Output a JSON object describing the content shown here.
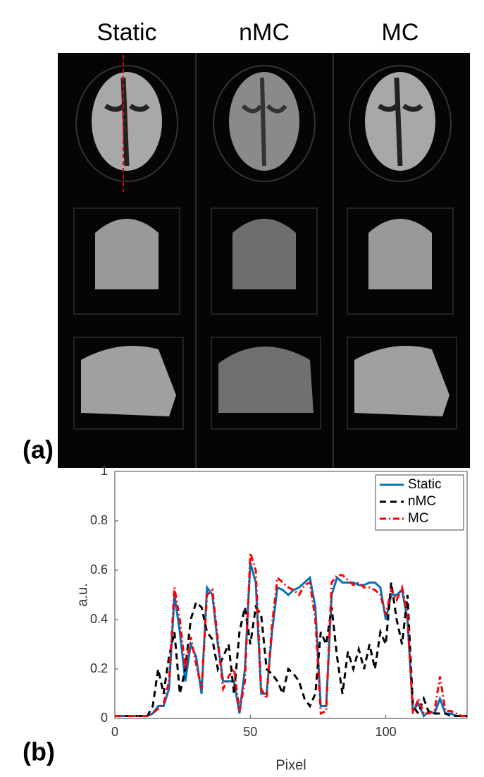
{
  "figure": {
    "columns": [
      "Static",
      "nMC",
      "MC"
    ],
    "panel_a": "(a)",
    "panel_b": "(b)"
  },
  "chart_data": {
    "type": "line",
    "xlabel": "Pixel",
    "ylabel": "a.u.",
    "xlim": [
      0,
      130
    ],
    "ylim": [
      0,
      1
    ],
    "xticks": [
      0,
      50,
      100
    ],
    "yticks": [
      0,
      0.2,
      0.4,
      0.6,
      0.8,
      1
    ],
    "legend": "upper right",
    "x": [
      0,
      2,
      4,
      6,
      8,
      10,
      12,
      14,
      16,
      18,
      20,
      22,
      24,
      26,
      28,
      30,
      32,
      34,
      36,
      38,
      40,
      42,
      44,
      46,
      48,
      50,
      52,
      54,
      56,
      58,
      60,
      62,
      64,
      66,
      68,
      70,
      72,
      74,
      76,
      78,
      80,
      82,
      84,
      86,
      88,
      90,
      92,
      94,
      96,
      98,
      100,
      102,
      104,
      106,
      108,
      110,
      112,
      114,
      116,
      118,
      120,
      122,
      124,
      126,
      128,
      130
    ],
    "series": [
      {
        "name": "Static",
        "color": "#0072bd",
        "linestyle": "solid",
        "values": [
          0.01,
          0.01,
          0.01,
          0.01,
          0.01,
          0.01,
          0.01,
          0.02,
          0.05,
          0.05,
          0.12,
          0.5,
          0.35,
          0.15,
          0.3,
          0.25,
          0.1,
          0.53,
          0.5,
          0.3,
          0.15,
          0.15,
          0.15,
          0.02,
          0.2,
          0.63,
          0.55,
          0.1,
          0.1,
          0.35,
          0.53,
          0.52,
          0.5,
          0.52,
          0.53,
          0.55,
          0.57,
          0.45,
          0.05,
          0.05,
          0.5,
          0.57,
          0.55,
          0.55,
          0.55,
          0.54,
          0.54,
          0.55,
          0.55,
          0.53,
          0.4,
          0.5,
          0.5,
          0.52,
          0.4,
          0.03,
          0.06,
          0.01,
          0.03,
          0.02,
          0.08,
          0.02,
          0.02,
          0.01,
          0.01,
          0.01
        ]
      },
      {
        "name": "nMC",
        "color": "#000000",
        "linestyle": "dashed",
        "values": [
          0.01,
          0.01,
          0.01,
          0.01,
          0.01,
          0.01,
          0.01,
          0.05,
          0.2,
          0.1,
          0.25,
          0.35,
          0.1,
          0.2,
          0.4,
          0.47,
          0.45,
          0.35,
          0.32,
          0.2,
          0.25,
          0.3,
          0.1,
          0.35,
          0.45,
          0.3,
          0.45,
          0.42,
          0.2,
          0.18,
          0.15,
          0.1,
          0.2,
          0.18,
          0.15,
          0.08,
          0.05,
          0.1,
          0.35,
          0.3,
          0.45,
          0.25,
          0.1,
          0.27,
          0.2,
          0.28,
          0.2,
          0.3,
          0.2,
          0.35,
          0.3,
          0.55,
          0.4,
          0.3,
          0.5,
          0.05,
          0.02,
          0.08,
          0.02,
          0.02,
          0.02,
          0.02,
          0.01,
          0.01,
          0.01,
          0.01
        ]
      },
      {
        "name": "MC",
        "color": "#ff0000",
        "linestyle": "dashdot",
        "values": [
          0.01,
          0.01,
          0.01,
          0.01,
          0.01,
          0.01,
          0.01,
          0.02,
          0.04,
          0.06,
          0.15,
          0.53,
          0.4,
          0.2,
          0.33,
          0.22,
          0.12,
          0.5,
          0.52,
          0.32,
          0.12,
          0.17,
          0.2,
          0.03,
          0.15,
          0.67,
          0.6,
          0.12,
          0.08,
          0.38,
          0.57,
          0.55,
          0.53,
          0.52,
          0.5,
          0.54,
          0.55,
          0.4,
          0.02,
          0.03,
          0.55,
          0.58,
          0.58,
          0.56,
          0.54,
          0.55,
          0.53,
          0.53,
          0.52,
          0.5,
          0.42,
          0.52,
          0.48,
          0.53,
          0.42,
          0.02,
          0.08,
          0.02,
          0.02,
          0.03,
          0.17,
          0.03,
          0.03,
          0.02,
          0.01,
          0.01
        ]
      }
    ]
  }
}
